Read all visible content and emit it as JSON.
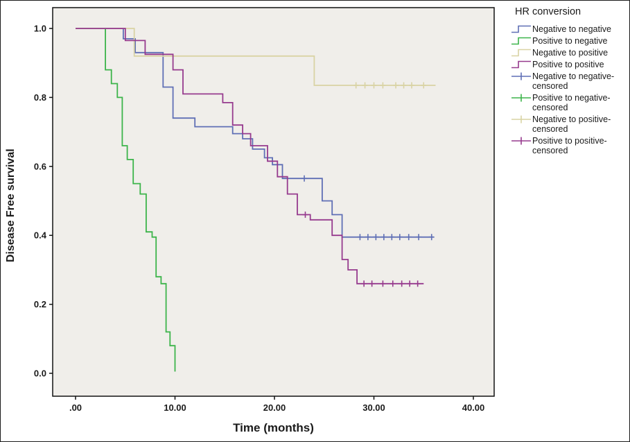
{
  "figure": {
    "y_axis_title": "Disease Free survival",
    "x_axis_title": "Time (months)"
  },
  "legend": {
    "title": "HR conversion",
    "items": [
      {
        "label_lines": [
          "Negative to negative"
        ],
        "type": "line",
        "series": 0
      },
      {
        "label_lines": [
          "Positive to negative"
        ],
        "type": "line",
        "series": 1
      },
      {
        "label_lines": [
          "Negative to positive"
        ],
        "type": "line",
        "series": 2
      },
      {
        "label_lines": [
          "Positive to positive"
        ],
        "type": "line",
        "series": 3
      },
      {
        "label_lines": [
          "Negative to negative-",
          "censored"
        ],
        "type": "censored",
        "series": 0
      },
      {
        "label_lines": [
          "Positive to negative-",
          "censored"
        ],
        "type": "censored",
        "series": 1
      },
      {
        "label_lines": [
          "Negative to positive-",
          "censored"
        ],
        "type": "censored",
        "series": 2
      },
      {
        "label_lines": [
          "Positive to positive-",
          "censored"
        ],
        "type": "censored",
        "series": 3
      }
    ]
  },
  "chart_data": {
    "type": "line",
    "subtype": "kaplan-meier-step",
    "title": "",
    "xlabel": "Time (months)",
    "ylabel": "Disease Free survival",
    "legend_title": "HR conversion",
    "legend_position": "right-top",
    "grid": false,
    "plot_bg": "#f0eeea",
    "xlim": [
      0,
      40
    ],
    "ylim": [
      0,
      1
    ],
    "x_ticks": [
      {
        "v": 0,
        "label": ".00"
      },
      {
        "v": 10,
        "label": "10.00"
      },
      {
        "v": 20,
        "label": "20.00"
      },
      {
        "v": 30,
        "label": "30.00"
      },
      {
        "v": 40,
        "label": "40.00"
      }
    ],
    "y_ticks": [
      {
        "v": 0.0,
        "label": "0.0"
      },
      {
        "v": 0.2,
        "label": "0.2"
      },
      {
        "v": 0.4,
        "label": "0.4"
      },
      {
        "v": 0.6,
        "label": "0.6"
      },
      {
        "v": 0.8,
        "label": "0.8"
      },
      {
        "v": 1.0,
        "label": "1.0"
      }
    ],
    "series": [
      {
        "name": "Negative to negative",
        "color": "#5f6fb5",
        "points": [
          [
            0,
            1
          ],
          [
            4.8,
            1
          ],
          [
            4.8,
            0.97
          ],
          [
            6,
            0.97
          ],
          [
            6,
            0.93
          ],
          [
            8.8,
            0.93
          ],
          [
            8.8,
            0.83
          ],
          [
            9.8,
            0.83
          ],
          [
            9.8,
            0.74
          ],
          [
            12,
            0.74
          ],
          [
            12,
            0.715
          ],
          [
            15.8,
            0.715
          ],
          [
            15.8,
            0.695
          ],
          [
            16.8,
            0.695
          ],
          [
            16.8,
            0.68
          ],
          [
            17.8,
            0.68
          ],
          [
            17.8,
            0.65
          ],
          [
            19,
            0.65
          ],
          [
            19,
            0.625
          ],
          [
            19.8,
            0.625
          ],
          [
            19.8,
            0.605
          ],
          [
            20.8,
            0.605
          ],
          [
            20.8,
            0.565
          ],
          [
            24.8,
            0.565
          ],
          [
            24.8,
            0.5
          ],
          [
            25.8,
            0.5
          ],
          [
            25.8,
            0.46
          ],
          [
            26.8,
            0.46
          ],
          [
            26.8,
            0.395
          ],
          [
            36,
            0.395
          ]
        ],
        "censored": [
          [
            23,
            0.565
          ],
          [
            28.6,
            0.395
          ],
          [
            29.4,
            0.395
          ],
          [
            30.2,
            0.395
          ],
          [
            31,
            0.395
          ],
          [
            31.8,
            0.395
          ],
          [
            32.6,
            0.395
          ],
          [
            33.5,
            0.395
          ],
          [
            34.5,
            0.395
          ],
          [
            35.8,
            0.395
          ]
        ]
      },
      {
        "name": "Positive to negative",
        "color": "#3cb44a",
        "points": [
          [
            0,
            1
          ],
          [
            3,
            1
          ],
          [
            3,
            0.88
          ],
          [
            3.6,
            0.88
          ],
          [
            3.6,
            0.84
          ],
          [
            4.2,
            0.84
          ],
          [
            4.2,
            0.8
          ],
          [
            4.7,
            0.8
          ],
          [
            4.7,
            0.66
          ],
          [
            5.2,
            0.66
          ],
          [
            5.2,
            0.62
          ],
          [
            5.8,
            0.62
          ],
          [
            5.8,
            0.55
          ],
          [
            6.5,
            0.55
          ],
          [
            6.5,
            0.52
          ],
          [
            7.1,
            0.52
          ],
          [
            7.1,
            0.41
          ],
          [
            7.7,
            0.41
          ],
          [
            7.7,
            0.395
          ],
          [
            8.1,
            0.395
          ],
          [
            8.1,
            0.28
          ],
          [
            8.6,
            0.28
          ],
          [
            8.6,
            0.26
          ],
          [
            9.1,
            0.26
          ],
          [
            9.1,
            0.12
          ],
          [
            9.5,
            0.12
          ],
          [
            9.5,
            0.08
          ],
          [
            10,
            0.08
          ],
          [
            10,
            0.005
          ]
        ],
        "censored": []
      },
      {
        "name": "Negative to positive",
        "color": "#d9d3a4",
        "points": [
          [
            0,
            1
          ],
          [
            5.9,
            1
          ],
          [
            5.9,
            0.92
          ],
          [
            24,
            0.92
          ],
          [
            24,
            0.835
          ],
          [
            36.2,
            0.835
          ]
        ],
        "censored": [
          [
            28.2,
            0.835
          ],
          [
            29.1,
            0.835
          ],
          [
            30,
            0.835
          ],
          [
            30.9,
            0.835
          ],
          [
            32.2,
            0.835
          ],
          [
            33,
            0.835
          ],
          [
            33.8,
            0.835
          ],
          [
            35,
            0.835
          ]
        ]
      },
      {
        "name": "Positive to positive",
        "color": "#963a8e",
        "points": [
          [
            0,
            1
          ],
          [
            5,
            1
          ],
          [
            5,
            0.965
          ],
          [
            7,
            0.965
          ],
          [
            7,
            0.925
          ],
          [
            9.8,
            0.925
          ],
          [
            9.8,
            0.88
          ],
          [
            10.8,
            0.88
          ],
          [
            10.8,
            0.81
          ],
          [
            14.8,
            0.81
          ],
          [
            14.8,
            0.785
          ],
          [
            15.8,
            0.785
          ],
          [
            15.8,
            0.72
          ],
          [
            16.8,
            0.72
          ],
          [
            16.8,
            0.695
          ],
          [
            17.6,
            0.695
          ],
          [
            17.6,
            0.66
          ],
          [
            19.3,
            0.66
          ],
          [
            19.3,
            0.615
          ],
          [
            20.3,
            0.615
          ],
          [
            20.3,
            0.57
          ],
          [
            21.3,
            0.57
          ],
          [
            21.3,
            0.52
          ],
          [
            22.3,
            0.52
          ],
          [
            22.3,
            0.46
          ],
          [
            23.6,
            0.46
          ],
          [
            23.6,
            0.445
          ],
          [
            25.8,
            0.445
          ],
          [
            25.8,
            0.4
          ],
          [
            26.8,
            0.4
          ],
          [
            26.8,
            0.33
          ],
          [
            27.4,
            0.33
          ],
          [
            27.4,
            0.3
          ],
          [
            28.3,
            0.3
          ],
          [
            28.3,
            0.26
          ],
          [
            35,
            0.26
          ]
        ],
        "censored": [
          [
            23.1,
            0.46
          ],
          [
            29,
            0.26
          ],
          [
            29.8,
            0.26
          ],
          [
            30.9,
            0.26
          ],
          [
            31.9,
            0.26
          ],
          [
            32.8,
            0.26
          ],
          [
            33.6,
            0.26
          ],
          [
            34.4,
            0.26
          ]
        ]
      }
    ]
  }
}
